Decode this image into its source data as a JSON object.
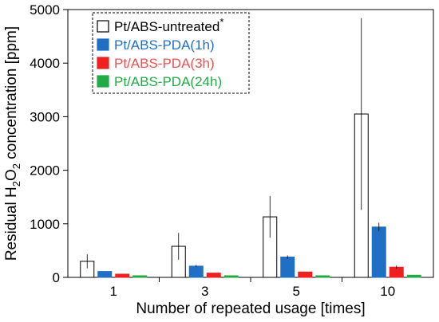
{
  "chart_data": {
    "type": "bar",
    "xlabel": "Number of repeated usage [times]",
    "ylabel_parts": {
      "pre": "Residual H",
      "sub1": "2",
      "mid": "O",
      "sub2": "2",
      "post": " concentration [ppm]"
    },
    "ylim": [
      0,
      5000
    ],
    "yticks": [
      0,
      1000,
      2000,
      3000,
      4000,
      5000
    ],
    "categories": [
      "1",
      "3",
      "5",
      "10"
    ],
    "grid": false,
    "legend_position": "top-left",
    "legend_marker": "*",
    "series": [
      {
        "name": "Pt/ABS-untreated",
        "fill": "#ffffff",
        "stroke": "#000000",
        "text_color": "#000000",
        "values": [
          300,
          580,
          1130,
          3050
        ],
        "errors": [
          130,
          250,
          390,
          1790
        ]
      },
      {
        "name": "Pt/ABS-PDA(1h)",
        "fill": "#1f6fc5",
        "stroke": "#1f6fc5",
        "text_color": "#1f6fc5",
        "values": [
          110,
          210,
          380,
          940
        ],
        "errors": [
          0,
          20,
          30,
          80
        ]
      },
      {
        "name": "Pt/ABS-PDA(3h)",
        "fill": "#ee2020",
        "stroke": "#ee2020",
        "text_color": "#f05050",
        "values": [
          60,
          80,
          100,
          190
        ],
        "errors": [
          0,
          0,
          0,
          30
        ]
      },
      {
        "name": "Pt/ABS-PDA(24h)",
        "fill": "#22aa44",
        "stroke": "#22aa44",
        "text_color": "#22aa44",
        "values": [
          30,
          30,
          30,
          40
        ],
        "errors": [
          0,
          0,
          0,
          0
        ]
      }
    ]
  }
}
